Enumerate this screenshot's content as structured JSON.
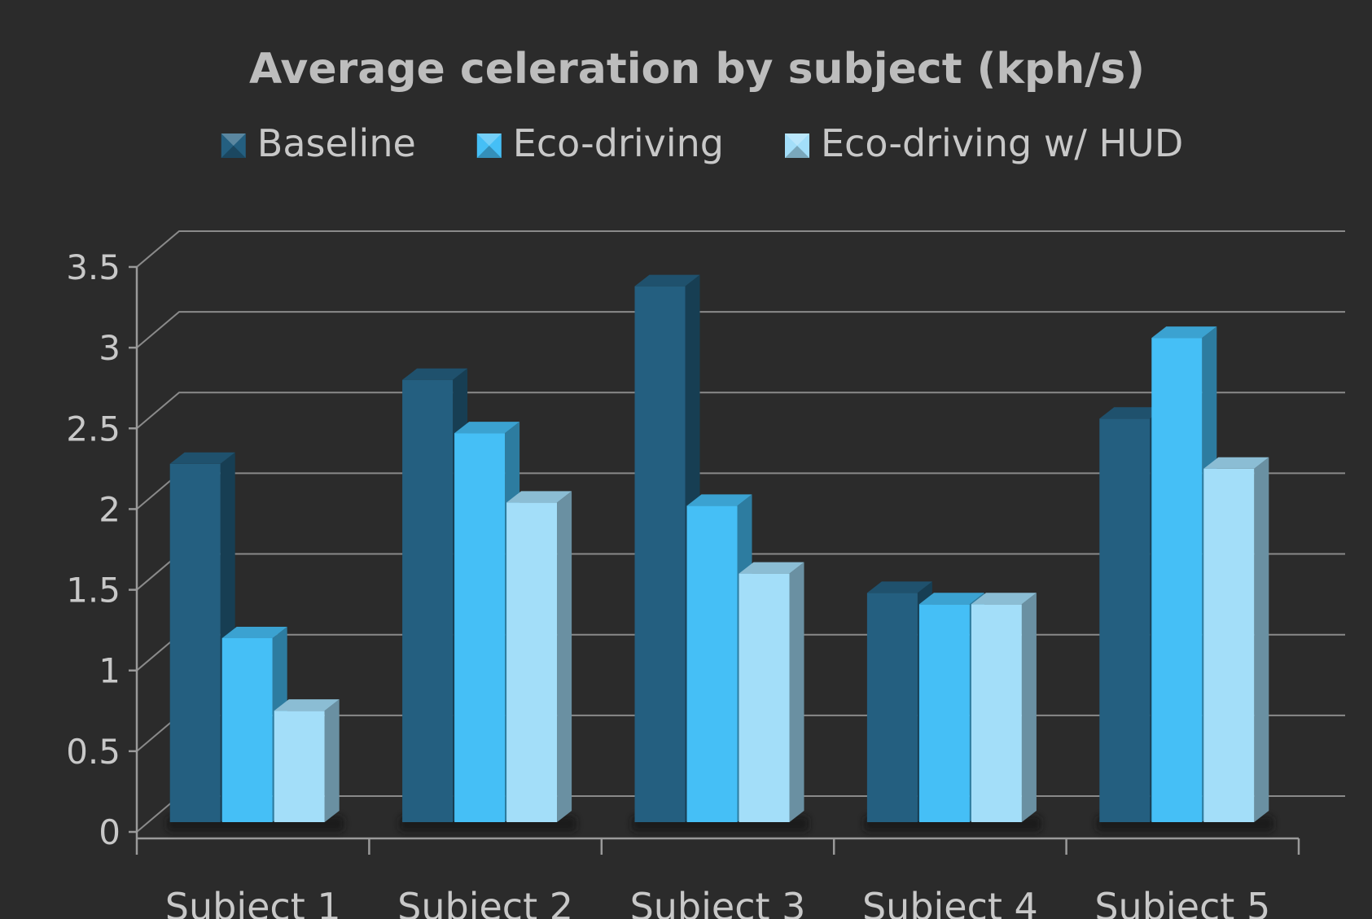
{
  "chart_data": {
    "type": "bar",
    "title": "Average celeration by subject (kph/s)",
    "xlabel": "",
    "ylabel": "",
    "categories": [
      "Subject 1",
      "Subject 2",
      "Subject 3",
      "Subject 4",
      "Subject 5"
    ],
    "series": [
      {
        "name": "Baseline",
        "values": [
          2.22,
          2.74,
          3.32,
          1.42,
          2.5
        ],
        "color": "#245f80"
      },
      {
        "name": "Eco-driving",
        "values": [
          1.14,
          2.41,
          1.96,
          1.35,
          3.0
        ],
        "color": "#45bff6"
      },
      {
        "name": "Eco-driving w/ HUD",
        "values": [
          0.69,
          1.98,
          1.54,
          1.35,
          2.19
        ],
        "color": "#a3def9"
      }
    ],
    "ylim": [
      0,
      3.5
    ],
    "yticks": [
      "0",
      "0.5",
      "1",
      "1.5",
      "2",
      "2.5",
      "3",
      "3.5"
    ],
    "grid": true,
    "legend": "top",
    "style": "3d-clustered-column",
    "background": "#2b2b2b"
  }
}
